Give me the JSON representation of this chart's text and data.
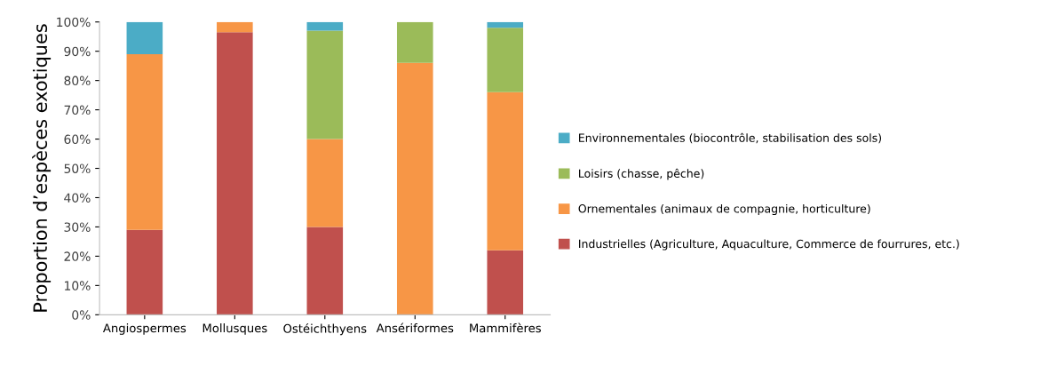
{
  "chart_data": {
    "type": "bar",
    "stacked": true,
    "ylabel": "Proportion d’espèces exotiques",
    "categories": [
      "Angiospermes",
      "Mollusques",
      "Ostéichthyens",
      "Ansériformes",
      "Mammifères"
    ],
    "series": [
      {
        "name": "Industrielles (Agriculture, Aquaculture, Commerce de fourrures, etc.)",
        "color": "#c0504d",
        "values": [
          29,
          96.5,
          30,
          0,
          22
        ]
      },
      {
        "name": "Ornementales (animaux de compagnie, horticulture)",
        "color": "#f79646",
        "values": [
          60,
          3.5,
          30,
          86,
          54
        ]
      },
      {
        "name": "Loisirs (chasse, pêche)",
        "color": "#9bbb59",
        "values": [
          0,
          0,
          37,
          14,
          22
        ]
      },
      {
        "name": "Environnementales (biocontrôle, stabilisation des sols)",
        "color": "#4bacc6",
        "values": [
          11,
          0,
          3,
          0,
          2
        ]
      }
    ],
    "ylim": [
      0,
      100
    ],
    "yticks": [
      {
        "value": 0,
        "label": "0%"
      },
      {
        "value": 10,
        "label": "10%"
      },
      {
        "value": 20,
        "label": "20%"
      },
      {
        "value": 30,
        "label": "30%"
      },
      {
        "value": 40,
        "label": "40%"
      },
      {
        "value": 50,
        "label": "50%"
      },
      {
        "value": 60,
        "label": "60%"
      },
      {
        "value": 70,
        "label": "70%"
      },
      {
        "value": 80,
        "label": "80%"
      },
      {
        "value": 90,
        "label": "90%"
      },
      {
        "value": 100,
        "label": "100%"
      }
    ],
    "grid": false,
    "legend": "right"
  }
}
